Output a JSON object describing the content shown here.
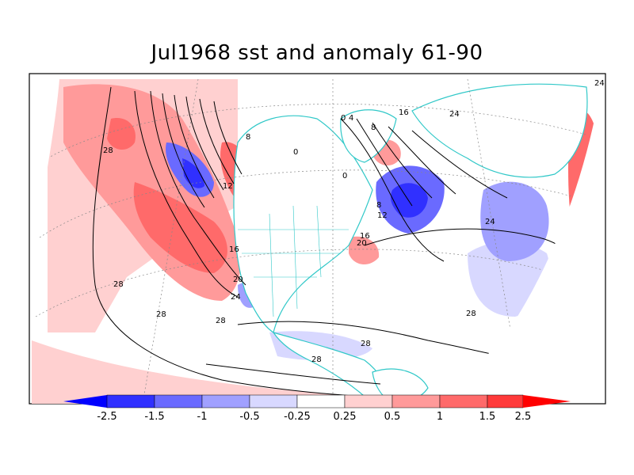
{
  "title": "Jul1968 sst and anomaly 61-90",
  "colors": {
    "strong_pos": "#ff3a3a",
    "pos": "#ff6a6a",
    "mild_pos": "#ff9a9a",
    "weak_pos": "#ffd0d0",
    "weak_neg": "#d8d8ff",
    "mild_neg": "#a0a0ff",
    "neg": "#6a6aff",
    "strong_neg": "#3030ff",
    "coast": "#30c8c8"
  },
  "colorbar": {
    "labels": [
      "-2.5",
      "-1.5",
      "-1",
      "-0.5",
      "-0.25",
      "0.25",
      "0.5",
      "1",
      "1.5",
      "2.5"
    ]
  },
  "contour_labels": {
    "c28a": "28",
    "c28b": "28",
    "c28c": "28",
    "c28d": "28",
    "c28e": "28",
    "c28f": "28",
    "c28g": "28",
    "c12a": "12",
    "c16a": "16",
    "c20a": "20",
    "c24a": "24",
    "c24b": "24",
    "c24c": "24",
    "c8a": "8",
    "c8b": "8",
    "c12b": "12",
    "c16b": "16",
    "c20b": "20",
    "c16c": "16",
    "c0a": "0",
    "c0b": "0",
    "c0c": "0",
    "c4a": "4",
    "c8c": "8",
    "c24d": "24"
  }
}
